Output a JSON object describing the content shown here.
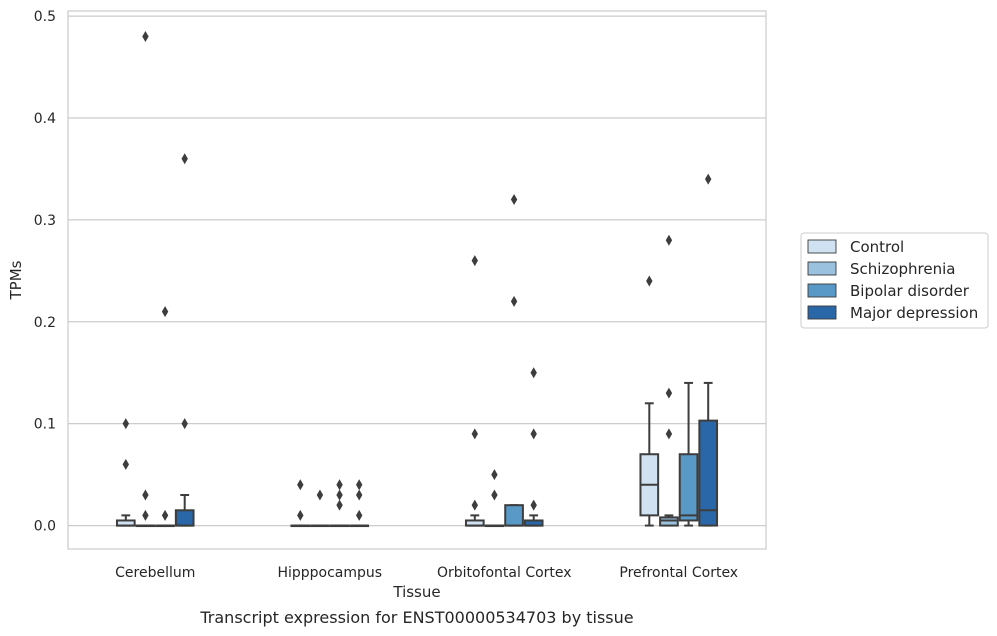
{
  "caption": "Transcript expression for ENST00000534703 by tissue",
  "chart_data": {
    "type": "box",
    "xlabel": "Tissue",
    "ylabel": "TPMs",
    "ylim": [
      -0.023,
      0.505
    ],
    "yticks": [
      0.0,
      0.1,
      0.2,
      0.3,
      0.4,
      0.5
    ],
    "ytick_labels": [
      "0.0",
      "0.1",
      "0.2",
      "0.3",
      "0.4",
      "0.5"
    ],
    "grid": true,
    "legend_position": "right",
    "categories": [
      "Cerebellum",
      "Hipppocampus",
      "Orbitofontal Cortex",
      "Prefrontal Cortex"
    ],
    "series": [
      {
        "name": "Control",
        "color": "#d0e1f2",
        "boxes": [
          {
            "whislo": 0,
            "q1": 0,
            "med": 0,
            "q3": 0.005,
            "whishi": 0.01,
            "fliers": [
              0.1,
              0.06
            ]
          },
          {
            "whislo": 0,
            "q1": 0,
            "med": 0,
            "q3": 0,
            "whishi": 0,
            "fliers": [
              0.04,
              0.01
            ]
          },
          {
            "whislo": 0,
            "q1": 0,
            "med": 0,
            "q3": 0.005,
            "whishi": 0.01,
            "fliers": [
              0.26,
              0.09,
              0.02
            ]
          },
          {
            "whislo": 0,
            "q1": 0.01,
            "med": 0.04,
            "q3": 0.07,
            "whishi": 0.12,
            "fliers": [
              0.24
            ]
          }
        ]
      },
      {
        "name": "Schizophrenia",
        "color": "#9ac1de",
        "boxes": [
          {
            "whislo": 0,
            "q1": 0,
            "med": 0,
            "q3": 0,
            "whishi": 0,
            "fliers": [
              0.48,
              0.03,
              0.01
            ]
          },
          {
            "whislo": 0,
            "q1": 0,
            "med": 0,
            "q3": 0,
            "whishi": 0,
            "fliers": [
              0.03
            ]
          },
          {
            "whislo": 0,
            "q1": 0,
            "med": 0,
            "q3": 0,
            "whishi": 0,
            "fliers": [
              0.05,
              0.03
            ]
          },
          {
            "whislo": 0,
            "q1": 0,
            "med": 0.005,
            "q3": 0.008,
            "whishi": 0.01,
            "fliers": [
              0.28,
              0.13,
              0.09
            ]
          }
        ]
      },
      {
        "name": "Bipolar disorder",
        "color": "#5899c7",
        "boxes": [
          {
            "whislo": 0,
            "q1": 0,
            "med": 0,
            "q3": 0,
            "whishi": 0,
            "fliers": [
              0.21,
              0.01
            ]
          },
          {
            "whislo": 0,
            "q1": 0,
            "med": 0,
            "q3": 0,
            "whishi": 0,
            "fliers": [
              0.04,
              0.03,
              0.02
            ]
          },
          {
            "whislo": 0,
            "q1": 0,
            "med": 0,
            "q3": 0.02,
            "whishi": 0.02,
            "fliers": [
              0.32,
              0.22
            ]
          },
          {
            "whislo": 0,
            "q1": 0.005,
            "med": 0.01,
            "q3": 0.07,
            "whishi": 0.14,
            "fliers": []
          }
        ]
      },
      {
        "name": "Major depression",
        "color": "#2967a8",
        "boxes": [
          {
            "whislo": 0,
            "q1": 0,
            "med": 0,
            "q3": 0.015,
            "whishi": 0.03,
            "fliers": [
              0.36,
              0.1
            ]
          },
          {
            "whislo": 0,
            "q1": 0,
            "med": 0,
            "q3": 0,
            "whishi": 0,
            "fliers": [
              0.04,
              0.03,
              0.01
            ]
          },
          {
            "whislo": 0,
            "q1": 0,
            "med": 0,
            "q3": 0.005,
            "whishi": 0.01,
            "fliers": [
              0.15,
              0.09,
              0.02
            ]
          },
          {
            "whislo": 0,
            "q1": 0,
            "med": 0.015,
            "q3": 0.103,
            "whishi": 0.14,
            "fliers": [
              0.34
            ]
          }
        ]
      }
    ]
  }
}
